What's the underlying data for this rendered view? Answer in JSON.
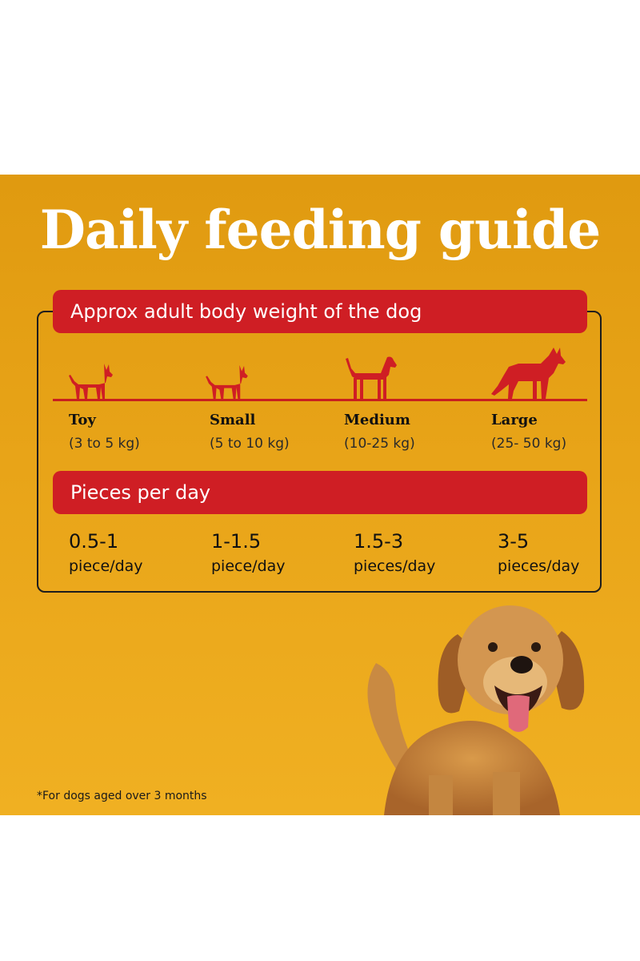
{
  "title": "Daily feeding guide",
  "weight_header": "Approx adult body weight of the dog",
  "sizes": [
    {
      "name": "Toy",
      "range": "(3 to 5 kg)"
    },
    {
      "name": "Small",
      "range": "(5 to 10 kg)"
    },
    {
      "name": "Medium",
      "range": "(10-25 kg)"
    },
    {
      "name": "Large",
      "range": "(25- 50 kg)"
    }
  ],
  "pieces_header": "Pieces per day",
  "pieces": [
    {
      "amount": "0.5-1",
      "unit": "piece/day"
    },
    {
      "amount": "1-1.5",
      "unit": "piece/day"
    },
    {
      "amount": "1.5-3",
      "unit": "pieces/day"
    },
    {
      "amount": "3-5",
      "unit": "pieces/day"
    }
  ],
  "footnote": "*For dogs aged over 3 months",
  "icons": [
    "toy-dog-icon",
    "small-dog-icon",
    "medium-dog-icon",
    "large-dog-icon"
  ],
  "colors": {
    "accent_red": "#cf1e24",
    "background_orange": "#e8a418",
    "title_white": "#ffffff"
  }
}
